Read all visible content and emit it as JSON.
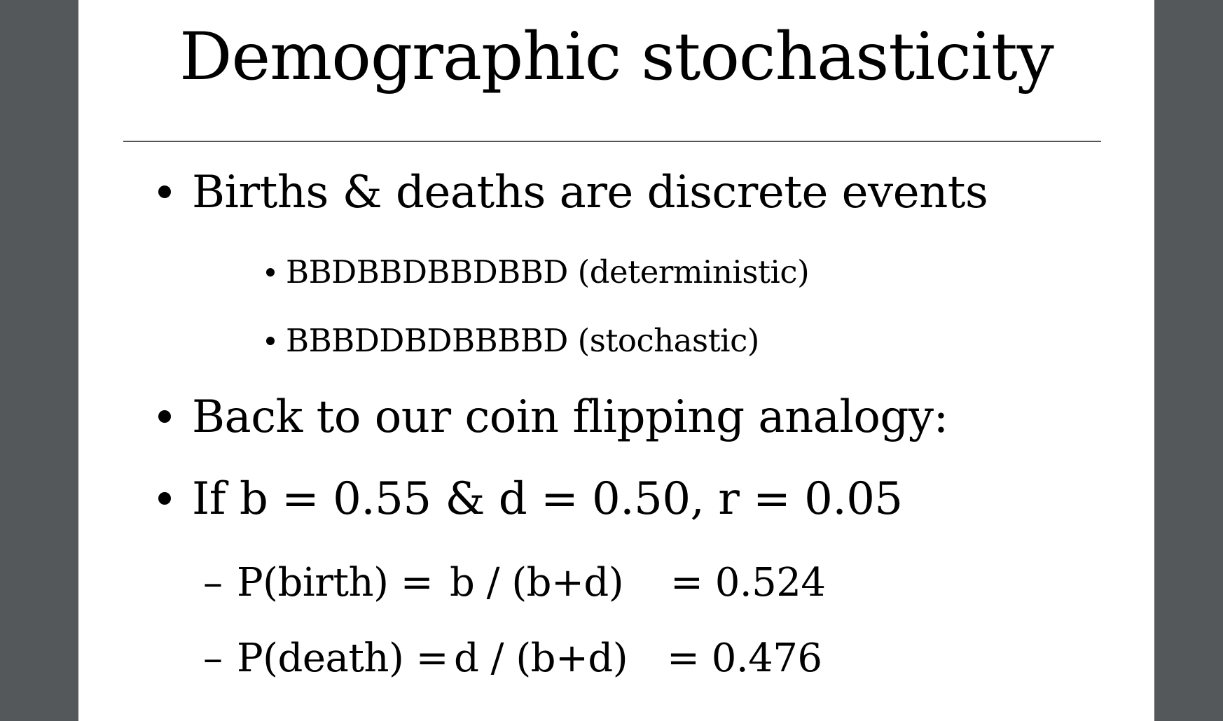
{
  "slide": {
    "title": "Demographic stochasticity",
    "bullets": [
      {
        "text": "Births & deaths are discrete events",
        "sub": [
          "BBDBBDBBDBBD (deterministic)",
          "BBBDDBDBBBBD (stochastic)"
        ]
      },
      {
        "text": "Back to our coin flipping analogy:"
      },
      {
        "text": "If b = 0.55 & d = 0.50, r = 0.05",
        "dash_items": [
          {
            "label": "P(birth) =",
            "formula": "b / (b+d)",
            "result": "= 0.524"
          },
          {
            "label": "P(death) =",
            "formula": "d / (b+d)",
            "result": "= 0.476"
          }
        ]
      }
    ]
  }
}
